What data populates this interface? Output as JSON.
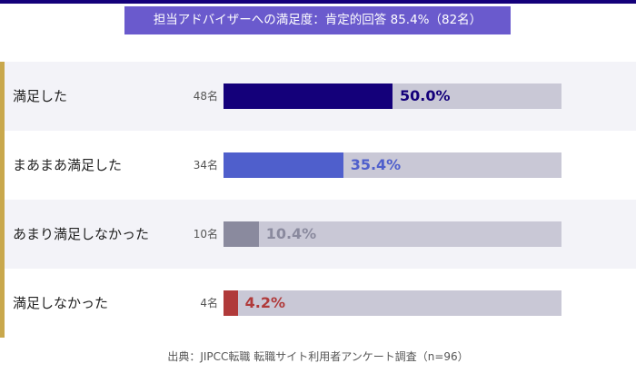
{
  "chart_data": {
    "type": "bar",
    "title": "担当アドバイザーへの満足度：肯定的回答 85.4%（82名）",
    "categories": [
      "満足した",
      "まあまあ満足した",
      "あまり満足しなかった",
      "満足しなかった"
    ],
    "counts": [
      "48名",
      "34名",
      "10名",
      "4名"
    ],
    "values": [
      50.0,
      35.4,
      10.4,
      4.2
    ],
    "value_labels": [
      "50.0%",
      "35.4%",
      "10.4%",
      "4.2%"
    ],
    "colors": [
      "#14007a",
      "#4f5fcc",
      "#8a8a9e",
      "#b03a3a"
    ],
    "xlim": [
      0,
      100
    ],
    "source": "出典：JIPCC転職 転職サイト利用者アンケート調査（n=96）"
  }
}
